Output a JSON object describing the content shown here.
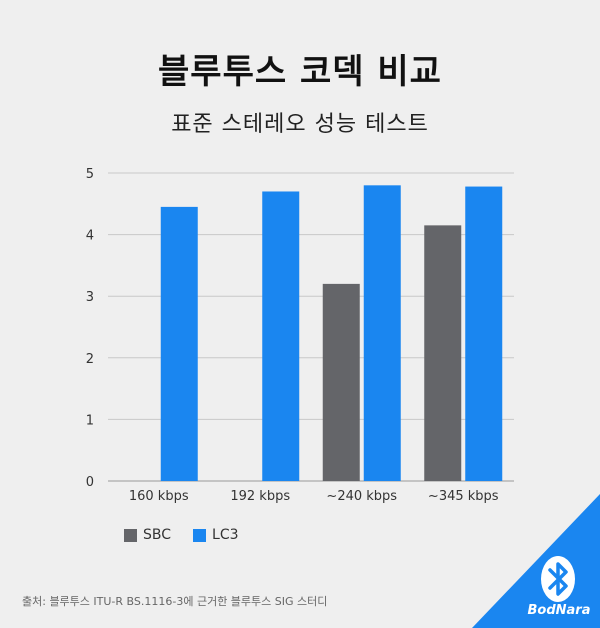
{
  "header": {
    "title": "블루투스 코덱 비교",
    "subtitle": "표준 스테레오 성능 테스트"
  },
  "chart_data": {
    "type": "bar",
    "title": "블루투스 코덱 비교",
    "subtitle": "표준 스테레오 성능 테스트",
    "categories": [
      "160 kbps",
      "192 kbps",
      "~240 kbps",
      "~345 kbps"
    ],
    "series": [
      {
        "name": "SBC",
        "color": "#646569",
        "values": [
          null,
          null,
          3.2,
          4.15
        ]
      },
      {
        "name": "LC3",
        "color": "#1a86f0",
        "values": [
          4.45,
          4.7,
          4.8,
          4.78
        ]
      }
    ],
    "y_ticks": [
      "0",
      "1",
      "2",
      "3",
      "4",
      "5"
    ],
    "ylim": [
      0,
      5
    ],
    "grid": true,
    "legend_position": "bottom-left"
  },
  "legend": {
    "items": [
      {
        "label": "SBC",
        "color": "#646569"
      },
      {
        "label": "LC3",
        "color": "#1a86f0"
      }
    ]
  },
  "footer": {
    "source": "출처: 블루투스  ITU-R BS.1116-3에 근거한 블루투스 SIG 스터디",
    "brand": "BodNara",
    "logo_icon": "bluetooth-icon",
    "accent_color": "#1a86f0"
  }
}
